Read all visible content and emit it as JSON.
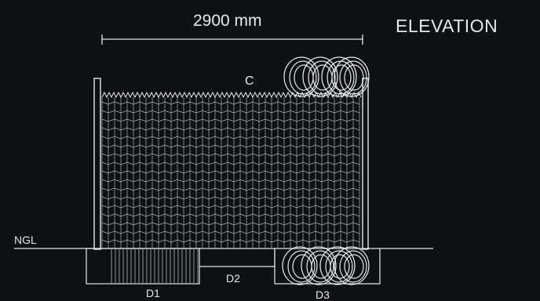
{
  "drawing": {
    "title": "ELEVATION",
    "dimension_label": "2900 mm",
    "labels": {
      "coil_top": "C",
      "ground_line": "NGL",
      "footing_1": "D1",
      "trench_2": "D2",
      "trench_3": "D3"
    }
  },
  "colors": {
    "background": "#0d1014",
    "line": "#e6e8ea",
    "mesh": "#c9cdd1"
  }
}
